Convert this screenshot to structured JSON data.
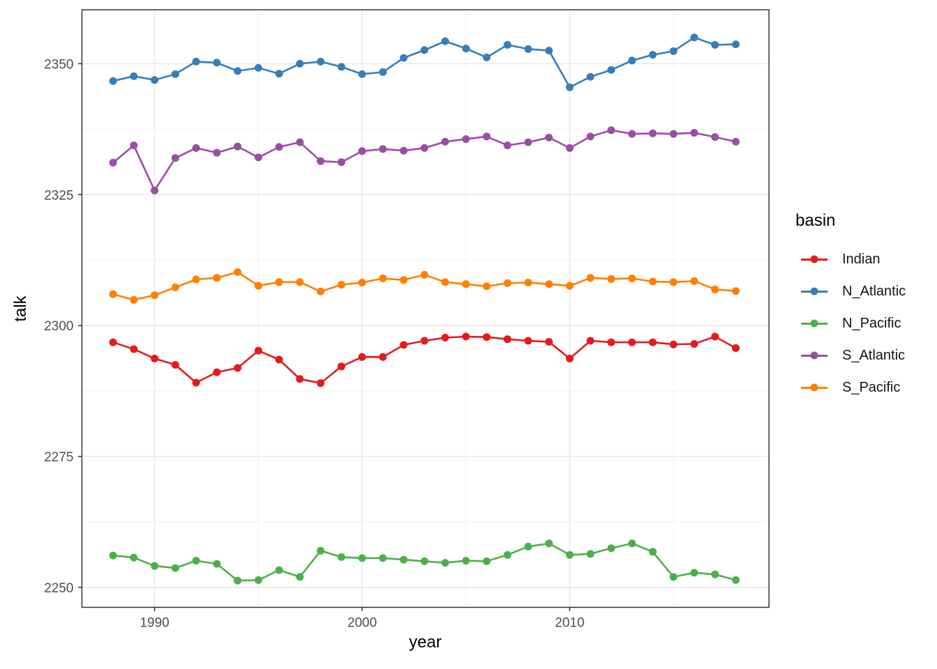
{
  "figure": {
    "background": "#ffffff"
  },
  "chart_data": {
    "type": "line",
    "title": "",
    "xlabel": "year",
    "ylabel": "talk",
    "grid": true,
    "legend": {
      "title": "basin",
      "position": "right",
      "entries": [
        "Indian",
        "N_Atlantic",
        "N_Pacific",
        "S_Atlantic",
        "S_Pacific"
      ]
    },
    "x": [
      1988,
      1989,
      1990,
      1991,
      1992,
      1993,
      1994,
      1995,
      1996,
      1997,
      1998,
      1999,
      2000,
      2001,
      2002,
      2003,
      2004,
      2005,
      2006,
      2007,
      2008,
      2009,
      2010,
      2011,
      2012,
      2013,
      2014,
      2015,
      2016,
      2017,
      2018
    ],
    "series": [
      {
        "name": "Indian",
        "color": "#E41A1C",
        "values": [
          2296.8,
          2295.5,
          2293.7,
          2292.5,
          2289.1,
          2291.1,
          2291.9,
          2295.2,
          2293.5,
          2289.8,
          2289.0,
          2292.2,
          2294.0,
          2294.0,
          2296.3,
          2297.1,
          2297.7,
          2297.9,
          2297.8,
          2297.4,
          2297.1,
          2296.9,
          2293.7,
          2297.1,
          2296.8,
          2296.8,
          2296.8,
          2296.4,
          2296.5,
          2297.9,
          2295.7
        ]
      },
      {
        "name": "N_Atlantic",
        "color": "#377EB8",
        "values": [
          2346.7,
          2347.6,
          2346.9,
          2348.0,
          2350.4,
          2350.2,
          2348.6,
          2349.2,
          2348.1,
          2350.0,
          2350.4,
          2349.4,
          2348.0,
          2348.4,
          2351.1,
          2352.6,
          2354.3,
          2352.9,
          2351.2,
          2353.6,
          2352.8,
          2352.5,
          2345.5,
          2347.5,
          2348.8,
          2350.6,
          2351.7,
          2352.4,
          2355.0,
          2353.6,
          2353.7
        ]
      },
      {
        "name": "N_Pacific",
        "color": "#4DAF4A",
        "values": [
          2256.1,
          2255.7,
          2254.1,
          2253.7,
          2255.1,
          2254.5,
          2251.3,
          2251.4,
          2253.3,
          2252.0,
          2257.0,
          2255.8,
          2255.6,
          2255.6,
          2255.3,
          2255.0,
          2254.7,
          2255.1,
          2255.0,
          2256.2,
          2257.8,
          2258.4,
          2256.2,
          2256.4,
          2257.5,
          2258.4,
          2256.8,
          2252.0,
          2252.8,
          2252.5,
          2251.4
        ]
      },
      {
        "name": "S_Atlantic",
        "color": "#984EA3",
        "values": [
          2331.1,
          2334.4,
          2325.8,
          2332.0,
          2333.9,
          2333.0,
          2334.2,
          2332.1,
          2334.1,
          2335.0,
          2331.4,
          2331.2,
          2333.3,
          2333.7,
          2333.4,
          2333.9,
          2335.1,
          2335.6,
          2336.1,
          2334.4,
          2335.0,
          2335.9,
          2333.9,
          2336.1,
          2337.3,
          2336.6,
          2336.7,
          2336.6,
          2336.8,
          2336.0,
          2335.1
        ]
      },
      {
        "name": "S_Pacific",
        "color": "#FF7F00",
        "values": [
          2306.0,
          2304.9,
          2305.8,
          2307.3,
          2308.8,
          2309.1,
          2310.2,
          2307.6,
          2308.3,
          2308.3,
          2306.5,
          2307.8,
          2308.2,
          2309.0,
          2308.7,
          2309.7,
          2308.3,
          2307.9,
          2307.5,
          2308.1,
          2308.2,
          2307.9,
          2307.6,
          2309.1,
          2308.9,
          2309.0,
          2308.4,
          2308.3,
          2308.5,
          2306.9,
          2306.6
        ]
      }
    ],
    "x_axis": {
      "ticks": [
        1990,
        2000,
        2010
      ],
      "minor_ticks": [
        1995,
        2005,
        2015
      ],
      "range": [
        1986.5,
        2019.6
      ]
    },
    "y_axis": {
      "ticks": [
        2250,
        2275,
        2300,
        2325,
        2350
      ],
      "minor_ticks": [
        2262.5,
        2287.5,
        2312.5,
        2337.5
      ],
      "range": [
        2246.2,
        2360.3
      ]
    },
    "styles": {
      "grid_major": "#E8E8E8",
      "grid_minor": "#F1F1F1",
      "panel_border": "#333333",
      "tick_mark": "#333333",
      "tick_label": "#4D4D4D",
      "axis_title": "#000000"
    }
  }
}
